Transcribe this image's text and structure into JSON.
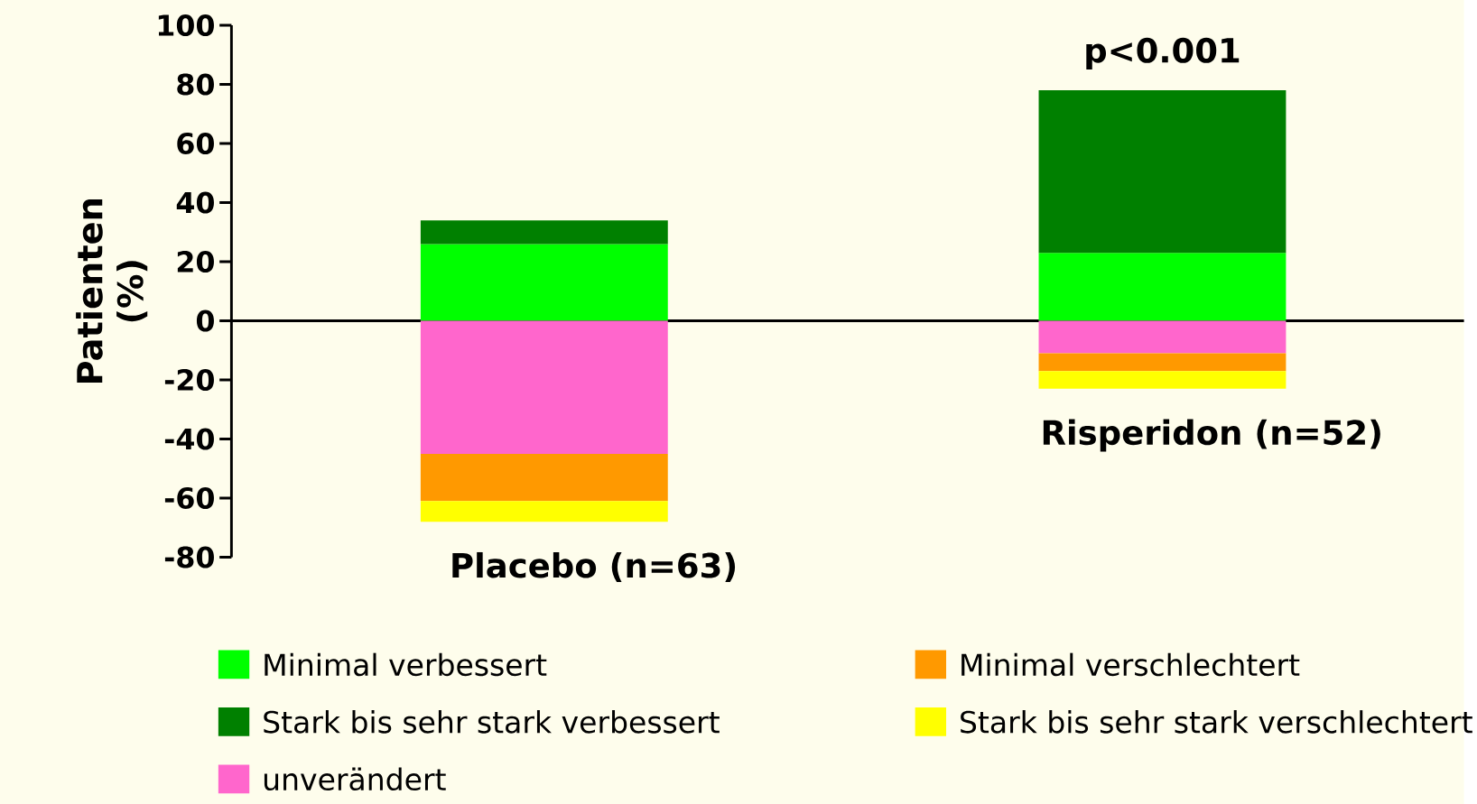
{
  "chart_data": {
    "type": "bar",
    "stacked": true,
    "ylabel": "Patienten (%)",
    "categories": [
      "Placebo (n=63)",
      "Risperidon (n=52)"
    ],
    "series": [
      {
        "name": "Minimal verbessert",
        "color": "#00ff00",
        "values": [
          26,
          23
        ]
      },
      {
        "name": "Stark bis sehr stark verbessert",
        "color": "#008000",
        "values": [
          8,
          55
        ]
      },
      {
        "name": "unverändert",
        "color": "#ff66cc",
        "values": [
          -45,
          -11
        ]
      },
      {
        "name": "Minimal verschlechtert",
        "color": "#ff9900",
        "values": [
          -16,
          -6
        ]
      },
      {
        "name": "Stark bis sehr stark verschlechtert",
        "color": "#ffff00",
        "values": [
          -7,
          -6
        ]
      }
    ],
    "ylim": [
      -80,
      100
    ],
    "yticks": [
      -80,
      -60,
      -40,
      -20,
      0,
      20,
      40,
      60,
      80,
      100
    ],
    "annotations": [
      "p<0.001"
    ],
    "legend": "bottom"
  }
}
